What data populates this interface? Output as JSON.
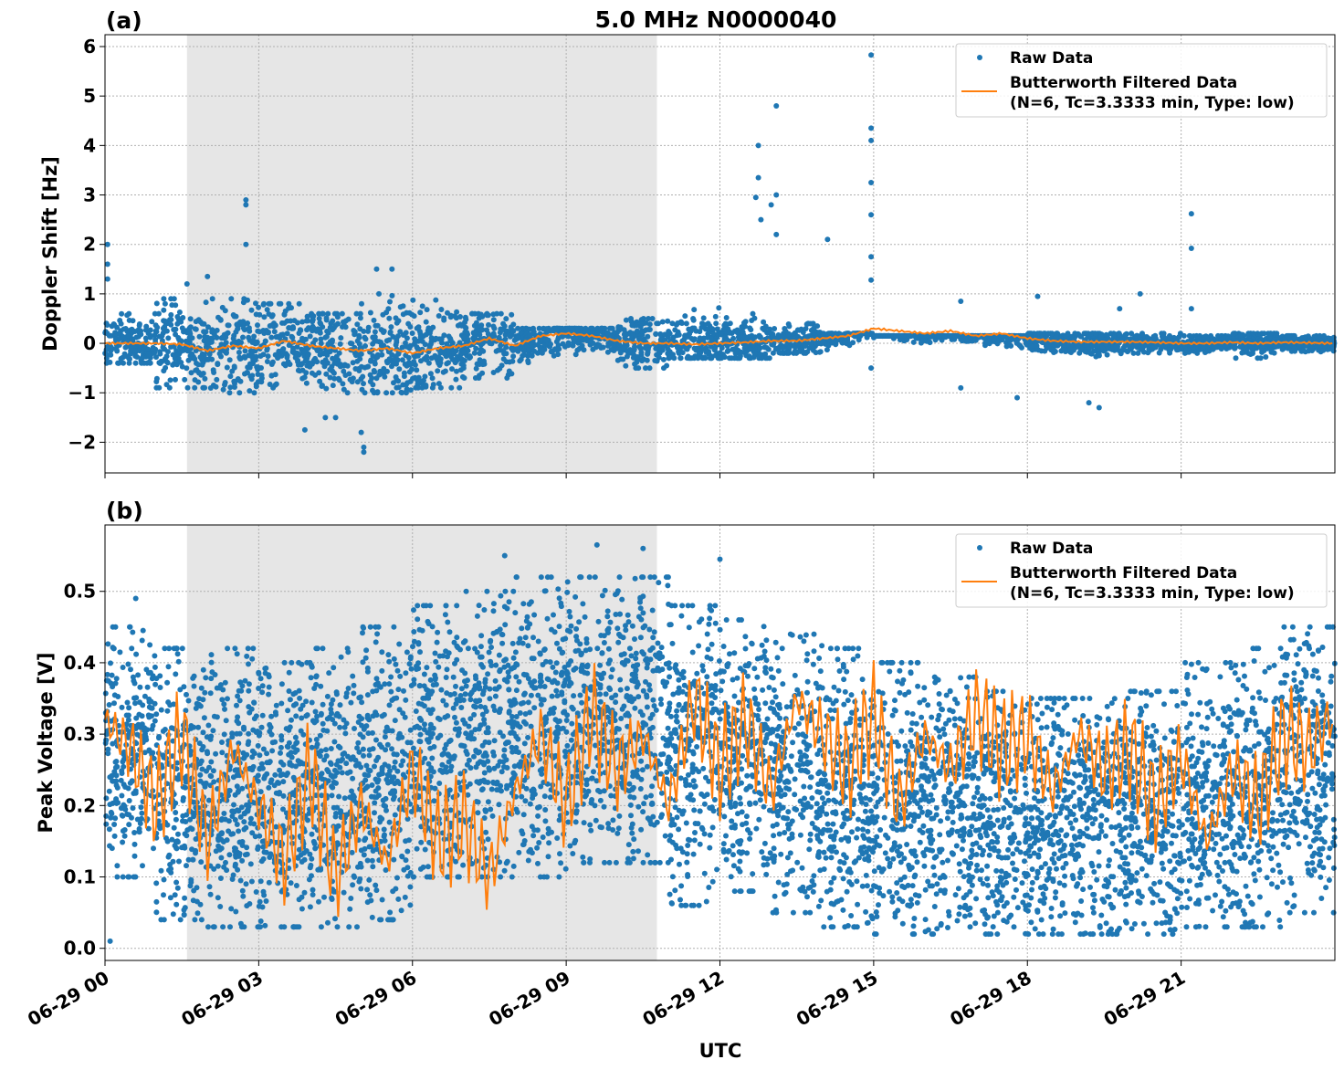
{
  "title": "5.0 MHz N0000040",
  "xlabel": "UTC",
  "x_ticks": [
    "06-29 00",
    "06-29 03",
    "06-29 06",
    "06-29 09",
    "06-29 12",
    "06-29 15",
    "06-29 18",
    "06-29 21"
  ],
  "x_tick_hours": [
    0,
    3,
    6,
    9,
    12,
    15,
    18,
    21
  ],
  "xlim_hours": [
    0,
    24
  ],
  "shaded_span_hours": [
    1.6,
    10.77
  ],
  "colors": {
    "raw": "#1f77b4",
    "filtered": "#ff7f0e",
    "shade": "#e6e6e6"
  },
  "legend": {
    "raw": "Raw Data",
    "filtered_line1": "Butterworth Filtered Data",
    "filtered_line2": "(N=6, Tc=3.3333 min, Type: low)",
    "placement": "top-right"
  },
  "chart_data": [
    {
      "type": "scatter+line",
      "panel_label": "(a)",
      "ylabel": "Doppler Shift [Hz]",
      "ylim": [
        -2.62,
        6.24
      ],
      "y_ticks": [
        -2,
        -1,
        0,
        1,
        2,
        3,
        4,
        5,
        6
      ],
      "y_tick_labels": [
        "−2",
        "−1",
        "0",
        "1",
        "2",
        "3",
        "4",
        "5",
        "6"
      ],
      "grid": true,
      "filtered": {
        "x_step_hours": 0.5,
        "values": [
          0,
          0,
          0,
          -0.02,
          -0.15,
          -0.05,
          -0.1,
          0.05,
          -0.05,
          -0.1,
          -0.15,
          -0.1,
          -0.2,
          -0.1,
          -0.05,
          0.1,
          -0.05,
          0.15,
          0.2,
          0.15,
          0.05,
          0,
          0,
          -0.02,
          0,
          0.02,
          0.05,
          0.05,
          0.1,
          0.15,
          0.3,
          0.25,
          0.2,
          0.25,
          0.15,
          0.2,
          0.1,
          0.05,
          0.03,
          0.03,
          0.03,
          0.02,
          0,
          0,
          0.02,
          0,
          0.02,
          0.01,
          0
        ]
      },
      "raw_range_per_hour": [
        [
          -0.4,
          0.6
        ],
        [
          -0.9,
          0.9
        ],
        [
          -1.0,
          0.9
        ],
        [
          -0.9,
          0.8
        ],
        [
          -1.0,
          0.6
        ],
        [
          -1.0,
          1.0
        ],
        [
          -0.9,
          0.9
        ],
        [
          -0.7,
          0.6
        ],
        [
          -0.4,
          0.3
        ],
        [
          -0.3,
          0.3
        ],
        [
          -0.5,
          0.5
        ],
        [
          -0.3,
          0.9
        ],
        [
          -0.3,
          0.6
        ],
        [
          -0.2,
          0.4
        ],
        [
          -0.2,
          0.2
        ],
        [
          -0.2,
          0.15
        ],
        [
          -0.2,
          0.15
        ],
        [
          -0.2,
          0.15
        ],
        [
          -0.3,
          0.2
        ],
        [
          -0.3,
          0.2
        ],
        [
          -0.2,
          0.2
        ],
        [
          -0.2,
          0.15
        ],
        [
          -0.3,
          0.2
        ],
        [
          -0.2,
          0.15
        ]
      ],
      "raw_outliers": [
        [
          0.05,
          2.0
        ],
        [
          0.05,
          1.6
        ],
        [
          0.05,
          1.3
        ],
        [
          1.6,
          1.2
        ],
        [
          2.0,
          1.35
        ],
        [
          2.75,
          2.9
        ],
        [
          2.75,
          2.8
        ],
        [
          2.75,
          2.0
        ],
        [
          3.9,
          -1.75
        ],
        [
          4.3,
          -1.5
        ],
        [
          4.5,
          -1.5
        ],
        [
          5.0,
          -1.8
        ],
        [
          5.05,
          -2.2
        ],
        [
          5.05,
          -2.1
        ],
        [
          5.3,
          1.5
        ],
        [
          5.6,
          1.5
        ],
        [
          12.7,
          2.95
        ],
        [
          12.75,
          4.0
        ],
        [
          12.75,
          3.35
        ],
        [
          12.8,
          2.5
        ],
        [
          13.0,
          2.8
        ],
        [
          13.1,
          4.8
        ],
        [
          13.1,
          3.0
        ],
        [
          13.1,
          2.2
        ],
        [
          14.1,
          2.1
        ],
        [
          14.95,
          5.83
        ],
        [
          14.95,
          4.35
        ],
        [
          14.95,
          4.1
        ],
        [
          14.95,
          3.25
        ],
        [
          14.95,
          2.6
        ],
        [
          14.95,
          1.75
        ],
        [
          14.95,
          1.28
        ],
        [
          14.95,
          -0.5
        ],
        [
          16.7,
          -0.9
        ],
        [
          16.7,
          0.85
        ],
        [
          17.8,
          -1.1
        ],
        [
          18.2,
          0.95
        ],
        [
          19.2,
          -1.2
        ],
        [
          19.4,
          -1.3
        ],
        [
          19.8,
          0.7
        ],
        [
          20.2,
          1.0
        ],
        [
          21.2,
          2.62
        ],
        [
          21.2,
          1.92
        ],
        [
          21.2,
          0.7
        ]
      ]
    },
    {
      "type": "scatter+line",
      "panel_label": "(b)",
      "ylabel": "Peak Voltage [V]",
      "ylim": [
        -0.017,
        0.593
      ],
      "y_ticks": [
        0,
        0.1,
        0.2,
        0.3,
        0.4,
        0.5
      ],
      "y_tick_labels": [
        "0.0",
        "0.1",
        "0.2",
        "0.3",
        "0.4",
        "0.5"
      ],
      "grid": true,
      "filtered": {
        "x_step_hours": 0.5,
        "values": [
          0.32,
          0.28,
          0.2,
          0.3,
          0.15,
          0.28,
          0.2,
          0.12,
          0.25,
          0.1,
          0.2,
          0.12,
          0.25,
          0.15,
          0.18,
          0.1,
          0.22,
          0.3,
          0.2,
          0.33,
          0.25,
          0.3,
          0.2,
          0.35,
          0.25,
          0.32,
          0.22,
          0.35,
          0.3,
          0.25,
          0.33,
          0.2,
          0.3,
          0.25,
          0.33,
          0.28,
          0.3,
          0.22,
          0.3,
          0.25,
          0.28,
          0.2,
          0.27,
          0.15,
          0.25,
          0.2,
          0.3,
          0.28,
          0.33
        ]
      },
      "raw_range_per_hour": [
        [
          0.1,
          0.45
        ],
        [
          0.04,
          0.42
        ],
        [
          0.03,
          0.42
        ],
        [
          0.03,
          0.4
        ],
        [
          0.03,
          0.42
        ],
        [
          0.04,
          0.45
        ],
        [
          0.1,
          0.48
        ],
        [
          0.1,
          0.5
        ],
        [
          0.1,
          0.52
        ],
        [
          0.12,
          0.52
        ],
        [
          0.12,
          0.52
        ],
        [
          0.06,
          0.48
        ],
        [
          0.08,
          0.46
        ],
        [
          0.05,
          0.44
        ],
        [
          0.03,
          0.42
        ],
        [
          0.02,
          0.4
        ],
        [
          0.02,
          0.38
        ],
        [
          0.02,
          0.36
        ],
        [
          0.02,
          0.35
        ],
        [
          0.02,
          0.35
        ],
        [
          0.02,
          0.36
        ],
        [
          0.03,
          0.4
        ],
        [
          0.03,
          0.42
        ],
        [
          0.05,
          0.45
        ]
      ],
      "raw_outliers": [
        [
          0.1,
          0.01
        ],
        [
          0.6,
          0.49
        ],
        [
          7.8,
          0.55
        ],
        [
          9.6,
          0.565
        ],
        [
          10.5,
          0.56
        ],
        [
          12.0,
          0.545
        ]
      ]
    }
  ]
}
